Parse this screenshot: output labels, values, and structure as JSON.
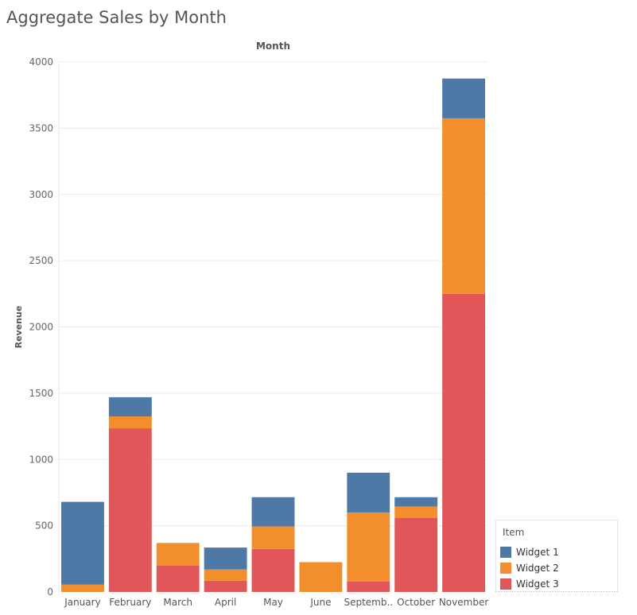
{
  "colors": {
    "widget1": "#4e79a7",
    "widget2": "#f28e2b",
    "widget3": "#e15759",
    "gridline": "#ececec"
  },
  "chart_data": {
    "type": "bar",
    "stacked": true,
    "title": "Aggregate Sales by Month",
    "header_label": "Month",
    "xlabel": "",
    "ylabel": "Revenue",
    "ylim": [
      0,
      4000
    ],
    "yticks": [
      0,
      500,
      1000,
      1500,
      2000,
      2500,
      3000,
      3500,
      4000
    ],
    "grid": true,
    "categories": [
      "January",
      "February",
      "March",
      "April",
      "May",
      "June",
      "Septemb..",
      "October",
      "November"
    ],
    "series": [
      {
        "name": "Widget 3",
        "color": "#e15759",
        "values": [
          0,
          1235,
          200,
          85,
          325,
          0,
          80,
          560,
          2250
        ]
      },
      {
        "name": "Widget 2",
        "color": "#f28e2b",
        "values": [
          55,
          90,
          170,
          85,
          170,
          225,
          520,
          85,
          1325
        ]
      },
      {
        "name": "Widget 1",
        "color": "#4e79a7",
        "values": [
          625,
          145,
          0,
          165,
          220,
          0,
          300,
          70,
          300
        ]
      }
    ],
    "legend": {
      "title": "Item",
      "placement": "bottom-right",
      "items": [
        "Widget 1",
        "Widget 2",
        "Widget 3"
      ]
    }
  }
}
